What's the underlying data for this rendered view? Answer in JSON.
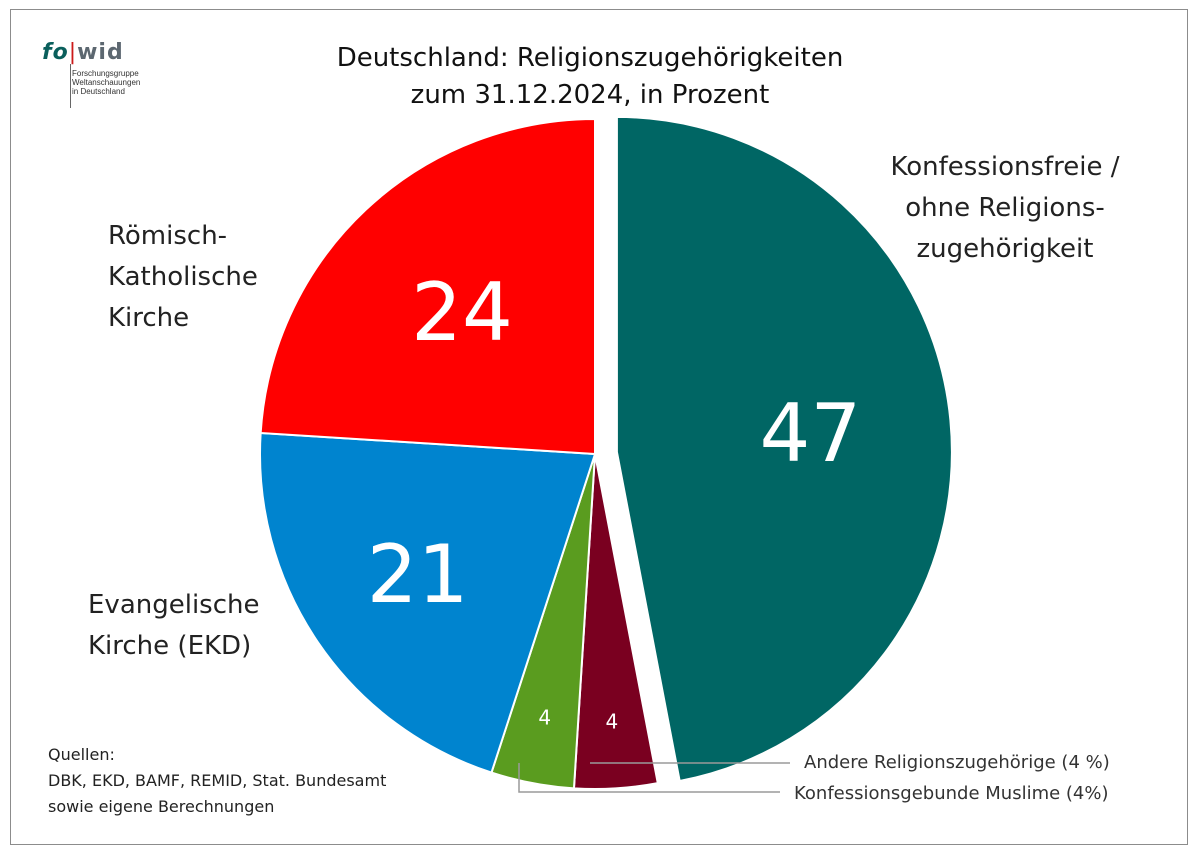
{
  "logo": {
    "word_fo": "fo",
    "word_wid": "wid",
    "sub_lines": [
      "Forschungsgruppe",
      "Weltanschauungen",
      "in Deutschland"
    ]
  },
  "title_lines": [
    "Deutschland: Religionszugehörigkeiten",
    "zum 31.12.2024, in Prozent"
  ],
  "labels": {
    "rk": [
      "Römisch-",
      "Katholische",
      "Kirche"
    ],
    "ev": [
      "Evangelische",
      "Kirche (EKD)"
    ],
    "kf": [
      "Konfessionsfreie /",
      "ohne Religions-",
      "zugehörigkeit"
    ]
  },
  "legend": {
    "andere": "Andere Religionszugehörige (4 %)",
    "muslime": "Konfessionsgebunde Muslime (4%)"
  },
  "sources": [
    "Quellen:",
    "DBK, EKD, BAMF, REMID, Stat. Bundesamt",
    "sowie eigene Berechnungen"
  ],
  "chart_data": {
    "type": "pie",
    "title": "Deutschland: Religionszugehörigkeiten zum 31.12.2024, in Prozent",
    "slices": [
      {
        "name": "Konfessionsfreie / ohne Religionszugehörigkeit",
        "value": 47,
        "label": "47",
        "color": "#006664",
        "exploded": true
      },
      {
        "name": "Konfessionsgebunde Muslime",
        "value": 4,
        "label": "4",
        "color": "#7a0020"
      },
      {
        "name": "Andere Religionszugehörige",
        "value": 4,
        "label": "4",
        "color": "#5a9c1f"
      },
      {
        "name": "Evangelische Kirche (EKD)",
        "value": 21,
        "label": "21",
        "color": "#0084cf"
      },
      {
        "name": "Römisch-Katholische Kirche",
        "value": 24,
        "label": "24",
        "color": "#ff0000"
      }
    ]
  },
  "colors": {
    "logo_teal": "#0a5f5c",
    "logo_red": "#cc1a1a",
    "frame": "#8c8c8c"
  }
}
